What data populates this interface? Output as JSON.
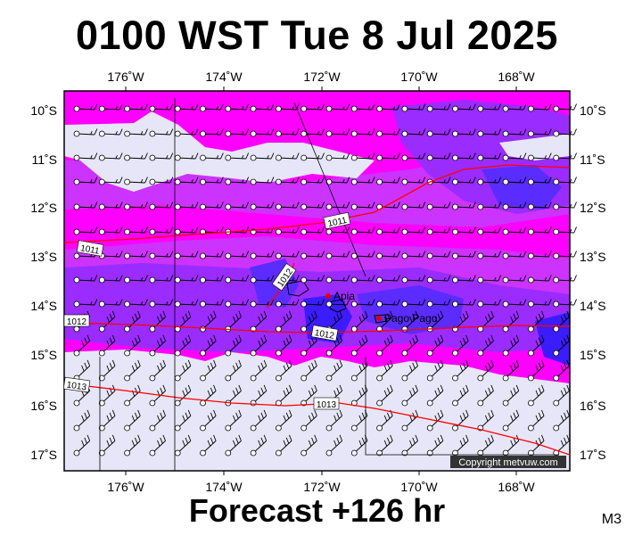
{
  "header": {
    "title": "0100 WST Tue 8 Jul 2025"
  },
  "footer": {
    "forecast": "Forecast +126 hr",
    "code": "M3"
  },
  "map": {
    "lon_labels": [
      "176˚W",
      "174˚W",
      "172˚W",
      "170˚W",
      "168˚W"
    ],
    "lat_labels": [
      "10˚S",
      "11˚S",
      "12˚S",
      "13˚S",
      "14˚S",
      "15˚S",
      "16˚S",
      "17˚S"
    ],
    "places": [
      "Apia",
      "Pago Pago"
    ],
    "isobar_labels": [
      "1011",
      "1011",
      "1012",
      "1012",
      "1012",
      "1013",
      "1013"
    ],
    "copyright": "Copyright metvuw.com",
    "colors": {
      "magenta": "#ff00ff",
      "violet": "#cc33ff",
      "purple": "#9a2cff",
      "blue": "#5a2cff",
      "lavender": "#e6e6f8",
      "isobar": "#ff0000"
    }
  }
}
